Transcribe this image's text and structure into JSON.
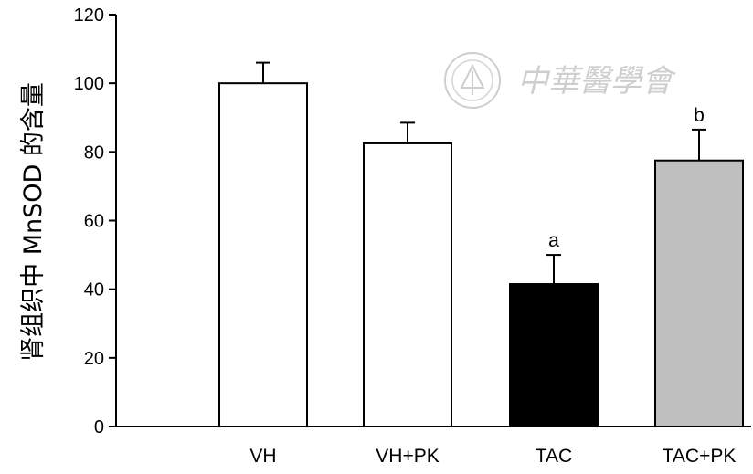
{
  "chart_data": {
    "type": "bar",
    "ylabel": "肾组织中 MnSOD 的含量",
    "xlabel": "",
    "ylim": [
      0,
      120
    ],
    "yticks": [
      0,
      20,
      40,
      60,
      80,
      100,
      120
    ],
    "categories": [
      "VH",
      "VH+PK",
      "TAC",
      "TAC+PK"
    ],
    "values": [
      100,
      82.5,
      41.5,
      77.5
    ],
    "errors": [
      6,
      6,
      8.5,
      9
    ],
    "annotations": [
      "",
      "",
      "a",
      "b"
    ],
    "colors": [
      "#ffffff",
      "#ffffff",
      "#000000",
      "#bfbfbf"
    ],
    "grid": false,
    "legend": "none"
  },
  "watermark": {
    "text": "中華醫學會",
    "color": "#c9c9c9"
  }
}
